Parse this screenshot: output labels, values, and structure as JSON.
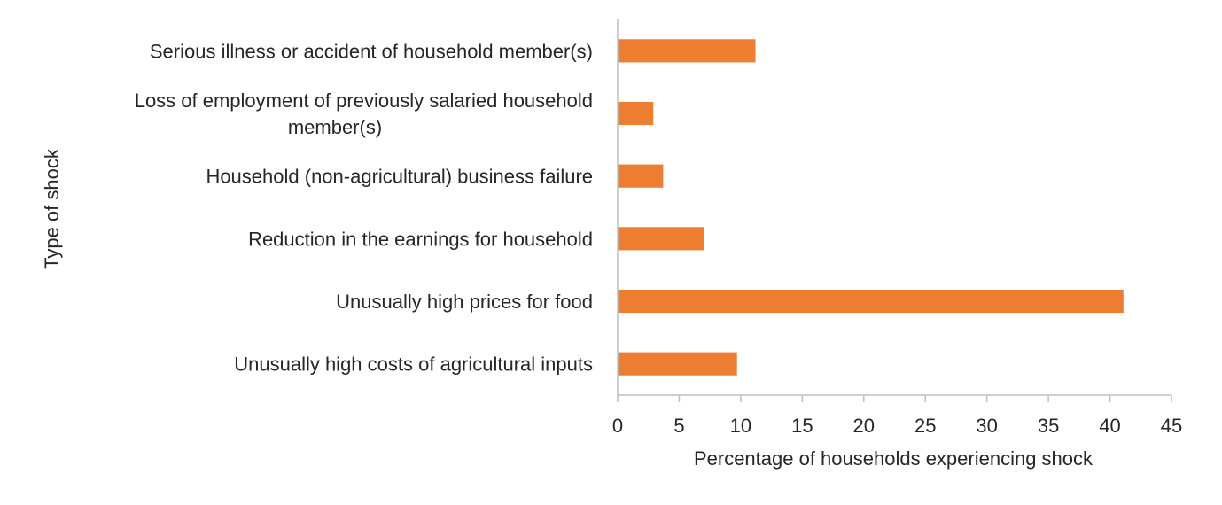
{
  "chart_data": {
    "type": "bar",
    "orientation": "horizontal",
    "categories": [
      [
        "Serious illness or accident of household member(s)"
      ],
      [
        "Loss of employment of previously salaried household",
        "member(s)"
      ],
      [
        "Household (non-agricultural) business failure"
      ],
      [
        "Reduction in the earnings for household"
      ],
      [
        "Unusually high prices for food"
      ],
      [
        "Unusually high costs of agricultural inputs"
      ]
    ],
    "values": [
      11.2,
      2.9,
      3.7,
      7.0,
      41.1,
      9.7
    ],
    "xlabel": "Percentage of households experiencing shock",
    "ylabel": "Type of shock",
    "xlim": [
      0,
      45
    ],
    "xticks": [
      "0",
      "5",
      "10",
      "15",
      "20",
      "25",
      "30",
      "35",
      "40",
      "45"
    ],
    "grid": false,
    "bar_color": "#ED7D31",
    "axis_color": "#BFBFBF"
  }
}
